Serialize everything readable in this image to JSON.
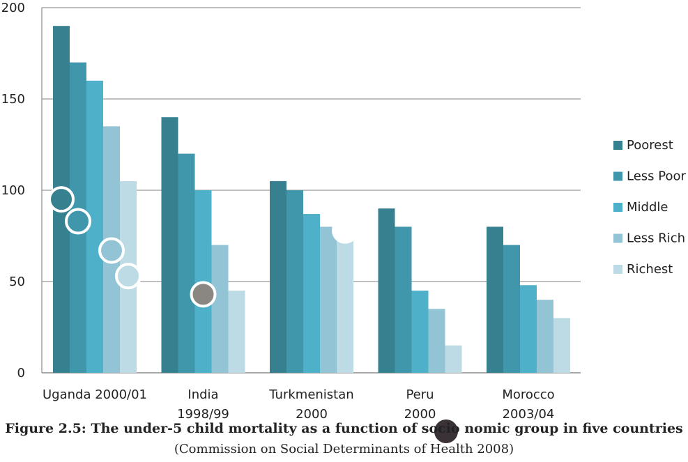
{
  "chart_data": {
    "type": "bar",
    "categories": [
      [
        "Uganda 2000/01"
      ],
      [
        "India",
        "1998/99"
      ],
      [
        "Turkmenistan",
        "2000"
      ],
      [
        "Peru",
        "2000"
      ],
      [
        "Morocco",
        "2003/04"
      ]
    ],
    "series": [
      {
        "name": "Poorest",
        "color": "#37808f",
        "values": [
          190,
          140,
          105,
          90,
          80
        ]
      },
      {
        "name": "Less Poor",
        "color": "#4097ab",
        "values": [
          170,
          120,
          100,
          80,
          70
        ]
      },
      {
        "name": "Middle",
        "color": "#4fb0c9",
        "values": [
          160,
          100,
          87,
          45,
          48
        ]
      },
      {
        "name": "Less Rich",
        "color": "#93c4d5",
        "values": [
          135,
          70,
          80,
          35,
          40
        ]
      },
      {
        "name": "Richest",
        "color": "#bcdbe5",
        "values": [
          105,
          45,
          75,
          15,
          30
        ]
      }
    ],
    "ylim": [
      0,
      200
    ],
    "yticks": [
      0,
      50,
      100,
      150,
      200
    ],
    "grid": true,
    "legend": "right",
    "title": "",
    "xlabel": "",
    "ylabel": ""
  },
  "caption": {
    "title": "Figure 2.5: The under-5 child mortality as a function of socio     nomic group in five countries",
    "source": "(Commission on Social Determinants of Health 2008)"
  },
  "markers": [
    {
      "series": 0,
      "category": 0,
      "value": 95,
      "fill": "#37808f"
    },
    {
      "series": 1,
      "category": 0,
      "value": 83,
      "fill": "#4097ab"
    },
    {
      "series": 3,
      "category": 0,
      "value": 67,
      "fill": "#93c4d5"
    },
    {
      "series": 4,
      "category": 0,
      "value": 53,
      "fill": "#bcdbe5"
    },
    {
      "series": 2,
      "category": 1,
      "value": 43,
      "fill": "#8a8682"
    },
    {
      "series": 4,
      "category": 2,
      "value": 78,
      "fill": "#ffffff"
    }
  ],
  "overlay_dot_color": "#3a3236"
}
